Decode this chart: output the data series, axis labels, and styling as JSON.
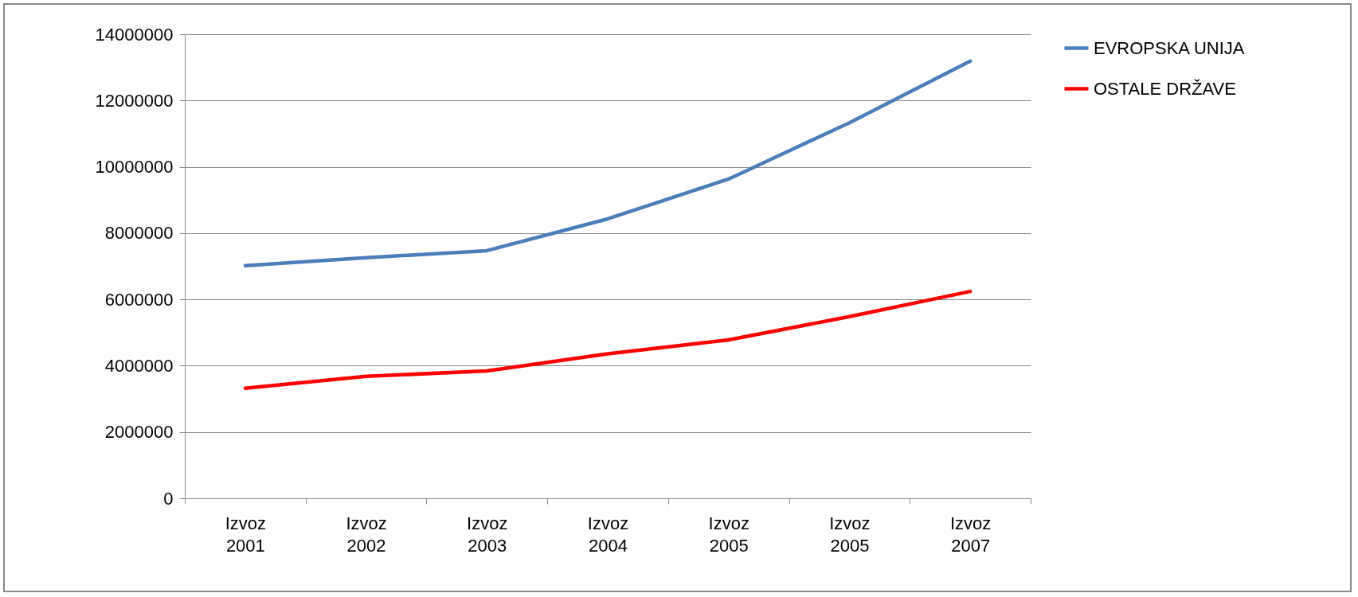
{
  "chart_data": {
    "type": "line",
    "categories": [
      "Izvoz 2001",
      "Izvoz 2002",
      "Izvoz 2003",
      "Izvoz 2004",
      "Izvoz 2005",
      "Izvoz 2005",
      "Izvoz 2007"
    ],
    "series": [
      {
        "name": "EVROPSKA UNIJA",
        "color": "#4a7ebb",
        "values": [
          7020000,
          7260000,
          7470000,
          8430000,
          9630000,
          11330000,
          13190000
        ]
      },
      {
        "name": "OSTALE DRŽAVE",
        "color": "#ff0000",
        "values": [
          3320000,
          3680000,
          3840000,
          4360000,
          4780000,
          5480000,
          6240000
        ]
      }
    ],
    "ylim": [
      0,
      14000000
    ],
    "yticks": [
      0,
      2000000,
      4000000,
      6000000,
      8000000,
      10000000,
      12000000,
      14000000
    ],
    "grid": "y",
    "legend": "right",
    "line_style": "solid",
    "marker": "none"
  }
}
